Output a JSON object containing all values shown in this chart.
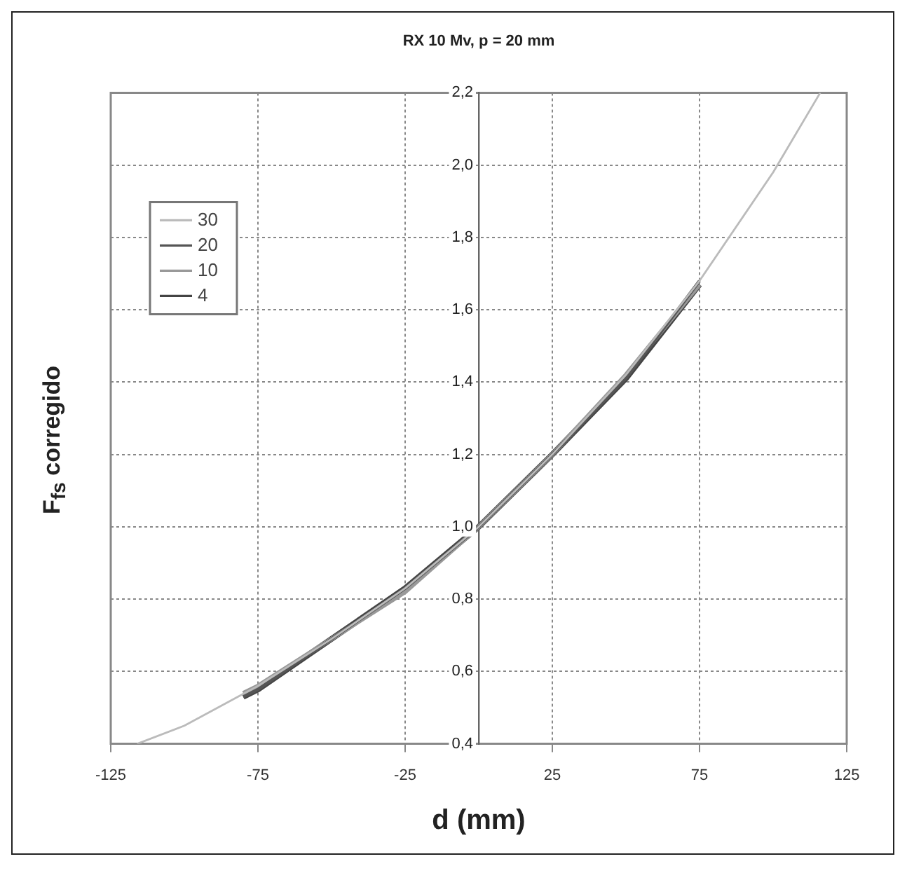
{
  "chart_data": {
    "type": "line",
    "title": "RX 10 Mv, p = 20 mm",
    "xlabel": "d (mm)",
    "ylabel": "F$_{fs}$ corregido",
    "xlim": [
      -125,
      125
    ],
    "xticks": [
      -125,
      -75,
      -25,
      25,
      75,
      125
    ],
    "ylim": [
      0.4,
      2.2
    ],
    "yticks": [
      {
        "value": 0.4,
        "label": "0,4"
      },
      {
        "value": 0.6,
        "label": "0,6"
      },
      {
        "value": 0.8,
        "label": "0,8"
      },
      {
        "value": 1.0,
        "label": "1,0"
      },
      {
        "value": 1.2,
        "label": "1,2"
      },
      {
        "value": 1.4,
        "label": "1,4"
      },
      {
        "value": 1.6,
        "label": "1,6"
      },
      {
        "value": 1.8,
        "label": "1,8"
      },
      {
        "value": 2.0,
        "label": "2,0"
      },
      {
        "value": 2.2,
        "label": "2,2"
      }
    ],
    "grid": true,
    "legend": "top left",
    "marker": "none",
    "line_style": "solid",
    "series": [
      {
        "name": "30",
        "color": "#bbbbbb",
        "x": [
          -116,
          -100,
          -75,
          -50,
          -25,
          0,
          25,
          50,
          75,
          100,
          116
        ],
        "values": [
          0.4,
          0.45,
          0.56,
          0.69,
          0.83,
          1.0,
          1.2,
          1.42,
          1.68,
          1.98,
          2.2
        ]
      },
      {
        "name": "20",
        "color": "#555555",
        "x": [
          -80,
          -75,
          -50,
          -25,
          0,
          25,
          50,
          75
        ],
        "values": [
          0.53,
          0.55,
          0.69,
          0.83,
          1.0,
          1.2,
          1.41,
          1.68
        ]
      },
      {
        "name": "10",
        "color": "#999999",
        "x": [
          -80,
          -75,
          -50,
          -25,
          0,
          25,
          50,
          75
        ],
        "values": [
          0.54,
          0.56,
          0.69,
          0.82,
          1.0,
          1.2,
          1.42,
          1.67
        ]
      },
      {
        "name": "4",
        "color": "#444444",
        "x": [
          -80,
          -75,
          -50,
          -25,
          0,
          25,
          50,
          75
        ],
        "values": [
          0.53,
          0.55,
          0.69,
          0.83,
          1.0,
          1.2,
          1.41,
          1.67
        ]
      }
    ]
  }
}
